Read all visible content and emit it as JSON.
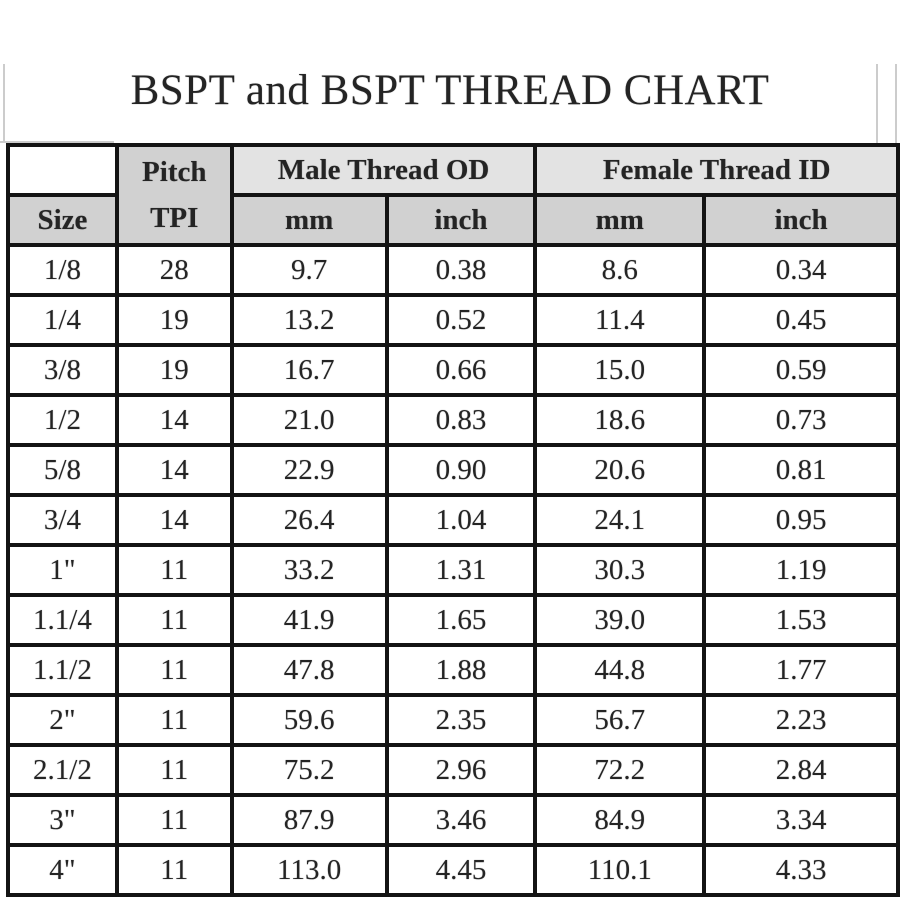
{
  "title": "BSPT and BSPT THREAD CHART",
  "table": {
    "size_header": "Size",
    "pitch_header_line1": "Pitch",
    "pitch_header_line2": "TPI",
    "group_headers": [
      {
        "label": "Male Thread OD"
      },
      {
        "label": "Female Thread ID"
      }
    ],
    "unit_headers": [
      "mm",
      "inch",
      "mm",
      "inch"
    ],
    "rows": [
      {
        "size": "1/8",
        "tpi": "28",
        "male_mm": "9.7",
        "male_inch": "0.38",
        "female_mm": "8.6",
        "female_inch": "0.34"
      },
      {
        "size": "1/4",
        "tpi": "19",
        "male_mm": "13.2",
        "male_inch": "0.52",
        "female_mm": "11.4",
        "female_inch": "0.45"
      },
      {
        "size": "3/8",
        "tpi": "19",
        "male_mm": "16.7",
        "male_inch": "0.66",
        "female_mm": "15.0",
        "female_inch": "0.59"
      },
      {
        "size": "1/2",
        "tpi": "14",
        "male_mm": "21.0",
        "male_inch": "0.83",
        "female_mm": "18.6",
        "female_inch": "0.73"
      },
      {
        "size": "5/8",
        "tpi": "14",
        "male_mm": "22.9",
        "male_inch": "0.90",
        "female_mm": "20.6",
        "female_inch": "0.81"
      },
      {
        "size": "3/4",
        "tpi": "14",
        "male_mm": "26.4",
        "male_inch": "1.04",
        "female_mm": "24.1",
        "female_inch": "0.95"
      },
      {
        "size": "1\"",
        "tpi": "11",
        "male_mm": "33.2",
        "male_inch": "1.31",
        "female_mm": "30.3",
        "female_inch": "1.19"
      },
      {
        "size": "1.1/4",
        "tpi": "11",
        "male_mm": "41.9",
        "male_inch": "1.65",
        "female_mm": "39.0",
        "female_inch": "1.53"
      },
      {
        "size": "1.1/2",
        "tpi": "11",
        "male_mm": "47.8",
        "male_inch": "1.88",
        "female_mm": "44.8",
        "female_inch": "1.77"
      },
      {
        "size": "2\"",
        "tpi": "11",
        "male_mm": "59.6",
        "male_inch": "2.35",
        "female_mm": "56.7",
        "female_inch": "2.23"
      },
      {
        "size": "2.1/2",
        "tpi": "11",
        "male_mm": "75.2",
        "male_inch": "2.96",
        "female_mm": "72.2",
        "female_inch": "2.84"
      },
      {
        "size": "3\"",
        "tpi": "11",
        "male_mm": "87.9",
        "male_inch": "3.46",
        "female_mm": "84.9",
        "female_inch": "3.34"
      },
      {
        "size": "4\"",
        "tpi": "11",
        "male_mm": "113.0",
        "male_inch": "4.45",
        "female_mm": "110.1",
        "female_inch": "4.33"
      }
    ]
  },
  "colors": {
    "page_bg": "#ffffff",
    "text": "#242424",
    "border": "#141414",
    "header_group_bg": "#e3e3e3",
    "header_sub_bg": "#d1d1d1",
    "rule_gray": "#cccccc"
  },
  "chart_data": {
    "type": "table",
    "title": "BSPT and BSPT THREAD CHART",
    "columns": [
      "Size",
      "Pitch TPI",
      "Male Thread OD mm",
      "Male Thread OD inch",
      "Female Thread ID mm",
      "Female Thread ID inch"
    ],
    "rows": [
      [
        "1/8",
        28,
        9.7,
        0.38,
        8.6,
        0.34
      ],
      [
        "1/4",
        19,
        13.2,
        0.52,
        11.4,
        0.45
      ],
      [
        "3/8",
        19,
        16.7,
        0.66,
        15.0,
        0.59
      ],
      [
        "1/2",
        14,
        21.0,
        0.83,
        18.6,
        0.73
      ],
      [
        "5/8",
        14,
        22.9,
        0.9,
        20.6,
        0.81
      ],
      [
        "3/4",
        14,
        26.4,
        1.04,
        24.1,
        0.95
      ],
      [
        "1\"",
        11,
        33.2,
        1.31,
        30.3,
        1.19
      ],
      [
        "1.1/4",
        11,
        41.9,
        1.65,
        39.0,
        1.53
      ],
      [
        "1.1/2",
        11,
        47.8,
        1.88,
        44.8,
        1.77
      ],
      [
        "2\"",
        11,
        59.6,
        2.35,
        56.7,
        2.23
      ],
      [
        "2.1/2",
        11,
        75.2,
        2.96,
        72.2,
        2.84
      ],
      [
        "3\"",
        11,
        87.9,
        3.46,
        84.9,
        3.34
      ],
      [
        "4\"",
        11,
        113.0,
        4.45,
        110.1,
        4.33
      ]
    ]
  }
}
